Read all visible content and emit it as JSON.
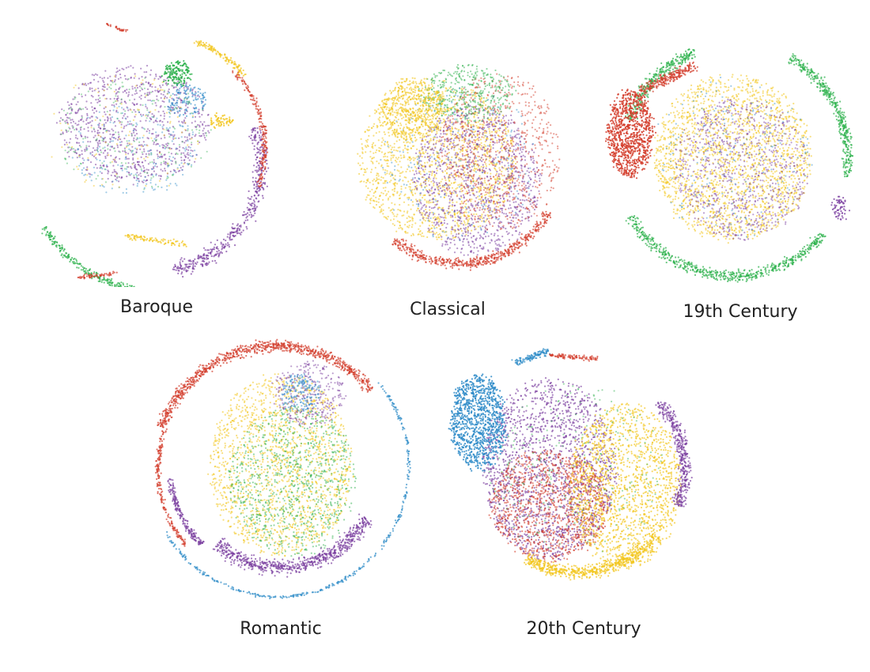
{
  "chart_data": [
    {
      "type": "scatter",
      "title": "Baroque",
      "shape": "open-arc",
      "grid": false,
      "legend": "none",
      "series_colors": [
        "#7b3fa0",
        "#2e8bc8",
        "#2bb04a",
        "#f2c418",
        "#d33d2c"
      ],
      "dominant_series": [
        "#7b3fa0"
      ]
    },
    {
      "type": "scatter",
      "title": "Classical",
      "shape": "dense-disc",
      "grid": false,
      "legend": "none",
      "series_colors": [
        "#f2c418",
        "#7b3fa0",
        "#d33d2c",
        "#2bb04a",
        "#2e8bc8"
      ],
      "dominant_series": [
        "#f2c418",
        "#7b3fa0"
      ]
    },
    {
      "type": "scatter",
      "title": "19th Century",
      "shape": "dense-disc-with-ring",
      "grid": false,
      "legend": "none",
      "series_colors": [
        "#f2c418",
        "#7b3fa0",
        "#2bb04a",
        "#d33d2c",
        "#2e8bc8"
      ],
      "dominant_series": [
        "#f2c418"
      ]
    },
    {
      "type": "scatter",
      "title": "Romantic",
      "shape": "dense-disc-with-ring",
      "grid": false,
      "legend": "none",
      "series_colors": [
        "#f2c418",
        "#2bb04a",
        "#7b3fa0",
        "#d33d2c",
        "#2e8bc8"
      ],
      "dominant_series": [
        "#f2c418",
        "#2bb04a"
      ]
    },
    {
      "type": "scatter",
      "title": "20th Century",
      "shape": "dense-disc",
      "grid": false,
      "legend": "none",
      "series_colors": [
        "#7b3fa0",
        "#d33d2c",
        "#f2c418",
        "#2e8bc8",
        "#2bb04a"
      ],
      "dominant_series": [
        "#7b3fa0",
        "#d33d2c",
        "#f2c418",
        "#2e8bc8"
      ]
    }
  ]
}
